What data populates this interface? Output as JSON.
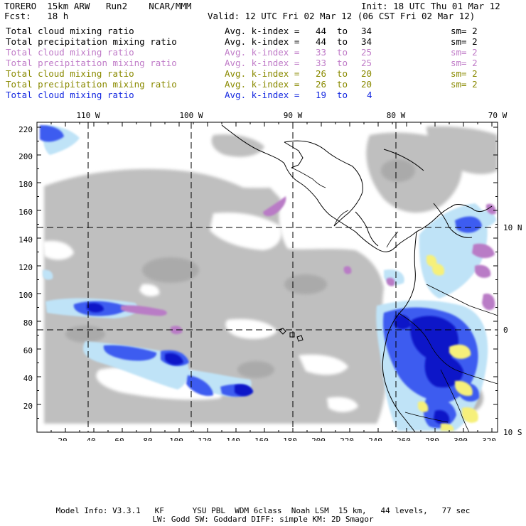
{
  "header": {
    "title_left": "TORERO  15km ARW   Run2    NCAR/MMM",
    "init": "Init: 18 UTC Thu 01 Mar 12",
    "fcst": "Fcst:   18 h",
    "valid": "Valid: 12 UTC Fri 02 Mar 12 (06 CST Fri 02 Mar 12)"
  },
  "legend": [
    {
      "field": "Total cloud mixing ratio",
      "index_label": "Avg. k-index =",
      "from": "44",
      "to_word": "to",
      "to": "34",
      "sm": "sm= 2",
      "color": "#000000"
    },
    {
      "field": "Total precipitation mixing ratio",
      "index_label": "Avg. k-index =",
      "from": "44",
      "to_word": "to",
      "to": "34",
      "sm": "sm= 2",
      "color": "#000000"
    },
    {
      "field": "Total cloud mixing ratio",
      "index_label": "Avg. k-index =",
      "from": "33",
      "to_word": "to",
      "to": "25",
      "sm": "sm= 2",
      "color": "#c07cc8"
    },
    {
      "field": "Total precipitation mixing ratio",
      "index_label": "Avg. k-index =",
      "from": "33",
      "to_word": "to",
      "to": "25",
      "sm": "sm= 2",
      "color": "#c07cc8"
    },
    {
      "field": "Total cloud mixing ratio",
      "index_label": "Avg. k-index =",
      "from": "26",
      "to_word": "to",
      "to": "20",
      "sm": "sm= 2",
      "color": "#8a8a00"
    },
    {
      "field": "Total precipitation mixing ratio",
      "index_label": "Avg. k-index =",
      "from": "26",
      "to_word": "to",
      "to": "20",
      "sm": "sm= 2",
      "color": "#8a8a00"
    },
    {
      "field": "Total cloud mixing ratio",
      "index_label": "Avg. k-index =",
      "from": "19",
      "to_word": "to",
      "to": "4",
      "sm": "",
      "color": "#1428e0"
    }
  ],
  "map": {
    "lon_labels": [
      "110 W",
      "100 W",
      "90 W",
      "80 W",
      "70 W"
    ],
    "lat_labels": [
      "10 N",
      "0",
      "10 S"
    ],
    "x_ticks": [
      "20",
      "40",
      "60",
      "80",
      "100",
      "120",
      "140",
      "160",
      "180",
      "200",
      "220",
      "240",
      "260",
      "280",
      "300",
      "320"
    ],
    "y_ticks": [
      "220",
      "200",
      "180",
      "160",
      "140",
      "120",
      "100",
      "80",
      "60",
      "40",
      "20"
    ],
    "colors": {
      "gray_cloud": "#bcbcbc",
      "gray_dark": "#a8a8a8",
      "light_blue": "#bfe3f7",
      "blue": "#1a30e8",
      "dark_blue": "#0a14c8",
      "purple": "#b97cc6",
      "yellow": "#f6f07a"
    }
  },
  "footer": {
    "line1": "Model Info: V3.3.1   KF      YSU PBL  WDM 6class  Noah LSM  15 km,   44 levels,   77 sec",
    "line2": "LW: Godd SW: Goddard DIFF: simple KM: 2D Smagor"
  }
}
